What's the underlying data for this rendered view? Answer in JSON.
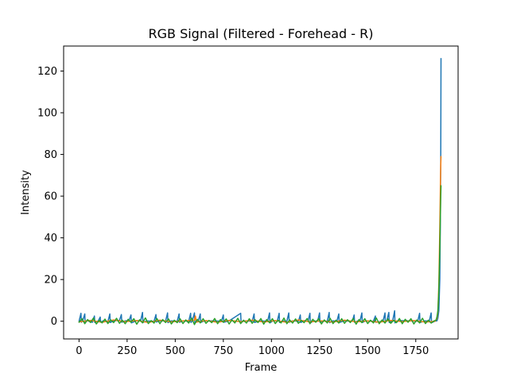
{
  "chart_data": {
    "type": "line",
    "title": "RGB Signal (Filtered - Forehead - R)",
    "xlabel": "Frame",
    "ylabel": "Intensity",
    "xlim": [
      -80,
      1970
    ],
    "ylim": [
      -8.5,
      132
    ],
    "xticks": [
      0,
      250,
      500,
      750,
      1000,
      1250,
      1500,
      1750
    ],
    "yticks": [
      0,
      20,
      40,
      60,
      80,
      100,
      120
    ],
    "grid": false,
    "legend": "none",
    "series": [
      {
        "color": "#1f77b4",
        "x": [
          0,
          10,
          12,
          20,
          30,
          32,
          40,
          70,
          80,
          82,
          100,
          110,
          112,
          130,
          150,
          160,
          162,
          180,
          210,
          220,
          222,
          240,
          260,
          270,
          272,
          300,
          320,
          330,
          332,
          350,
          390,
          400,
          402,
          420,
          450,
          460,
          462,
          480,
          510,
          520,
          522,
          540,
          570,
          580,
          582,
          590,
          600,
          602,
          620,
          630,
          632,
          650,
          700,
          740,
          750,
          752,
          780,
          840,
          842,
          860,
          900,
          910,
          912,
          940,
          980,
          990,
          992,
          1010,
          1030,
          1040,
          1042,
          1060,
          1080,
          1090,
          1092,
          1110,
          1140,
          1150,
          1152,
          1170,
          1190,
          1200,
          1202,
          1220,
          1240,
          1250,
          1252,
          1270,
          1290,
          1300,
          1302,
          1320,
          1340,
          1350,
          1352,
          1380,
          1420,
          1430,
          1432,
          1450,
          1460,
          1470,
          1472,
          1490,
          1530,
          1540,
          1542,
          1580,
          1590,
          1592,
          1600,
          1610,
          1612,
          1630,
          1640,
          1642,
          1660,
          1720,
          1760,
          1770,
          1772,
          1800,
          1820,
          1830,
          1832,
          1850,
          1860,
          1865,
          1870,
          1875,
          1878,
          1880,
          1881
        ],
        "y": [
          0,
          3.8,
          -0.5,
          0.5,
          3.5,
          -0.8,
          0.3,
          -0.5,
          2.5,
          -0.6,
          0.2,
          2,
          -0.5,
          0.4,
          -0.3,
          3.5,
          -0.6,
          0.2,
          0.4,
          3.2,
          -0.5,
          0.2,
          0.3,
          3,
          -0.8,
          0.3,
          0.2,
          4.2,
          -0.6,
          0.1,
          0,
          3.2,
          -0.4,
          0.2,
          0.1,
          4,
          -0.7,
          0.2,
          0,
          3.5,
          -0.5,
          0.2,
          0,
          3.8,
          -0.6,
          0.5,
          4,
          -0.8,
          0.2,
          3.5,
          -0.6,
          0.1,
          0.2,
          0,
          3,
          -0.5,
          0.2,
          3.8,
          -0.5,
          0.2,
          0,
          3.5,
          -0.6,
          0.2,
          0,
          4,
          -0.8,
          0.3,
          0,
          3.8,
          -0.6,
          0.2,
          0,
          4,
          -0.5,
          0.2,
          0,
          3,
          -0.6,
          0.3,
          0,
          3.8,
          -0.8,
          0.2,
          0,
          4,
          -0.5,
          0.2,
          0,
          4.2,
          -0.7,
          0.2,
          0,
          3.5,
          -0.6,
          0.2,
          0,
          3,
          -0.5,
          0.2,
          0,
          4,
          -0.6,
          0.2,
          0,
          2.5,
          -0.5,
          0,
          4,
          -0.5,
          0.5,
          4.2,
          -0.6,
          0.2,
          5,
          -0.8,
          0.3,
          0.2,
          0,
          3.8,
          -0.6,
          0.2,
          0,
          4,
          -0.7,
          0,
          0.2,
          1.5,
          5,
          20,
          50,
          80,
          126
        ]
      },
      {
        "color": "#ff7f0e",
        "x": [
          0,
          60,
          120,
          180,
          240,
          300,
          360,
          420,
          480,
          540,
          600,
          605,
          610,
          660,
          720,
          780,
          840,
          900,
          960,
          1020,
          1080,
          1140,
          1200,
          1260,
          1320,
          1380,
          1440,
          1500,
          1560,
          1620,
          1680,
          1740,
          1800,
          1850,
          1860,
          1865,
          1870,
          1875,
          1878,
          1880,
          1881
        ],
        "y": [
          -0.3,
          0.4,
          -0.5,
          0.6,
          -0.2,
          0.3,
          -0.6,
          0.5,
          -0.3,
          0.2,
          0.5,
          2.5,
          -0.4,
          0.3,
          -0.5,
          0.4,
          -0.2,
          0.5,
          -0.4,
          0.3,
          -0.5,
          0.6,
          -0.3,
          0.2,
          -0.4,
          0.5,
          -0.3,
          0.2,
          -0.5,
          0.4,
          -0.2,
          0.3,
          -0.4,
          0,
          1.2,
          4.5,
          18,
          45,
          65,
          75,
          79
        ]
      },
      {
        "color": "#2ca02c",
        "x": [
          0,
          15,
          30,
          45,
          60,
          75,
          90,
          105,
          120,
          135,
          150,
          165,
          180,
          195,
          210,
          225,
          240,
          255,
          270,
          285,
          300,
          315,
          330,
          345,
          360,
          375,
          390,
          405,
          420,
          435,
          450,
          465,
          480,
          495,
          510,
          525,
          540,
          555,
          570,
          585,
          600,
          615,
          630,
          645,
          660,
          675,
          690,
          705,
          720,
          735,
          750,
          765,
          780,
          795,
          810,
          825,
          840,
          855,
          870,
          885,
          900,
          915,
          930,
          945,
          960,
          975,
          990,
          1005,
          1020,
          1035,
          1050,
          1065,
          1080,
          1095,
          1110,
          1125,
          1140,
          1155,
          1170,
          1185,
          1200,
          1215,
          1230,
          1245,
          1260,
          1275,
          1290,
          1305,
          1320,
          1335,
          1350,
          1365,
          1380,
          1395,
          1410,
          1425,
          1440,
          1455,
          1470,
          1485,
          1500,
          1515,
          1530,
          1545,
          1560,
          1575,
          1590,
          1605,
          1620,
          1635,
          1650,
          1665,
          1680,
          1695,
          1710,
          1725,
          1740,
          1755,
          1770,
          1785,
          1800,
          1815,
          1830,
          1845,
          1855,
          1860,
          1865,
          1870,
          1875,
          1878,
          1880,
          1881
        ],
        "y": [
          -0.5,
          1.2,
          -1.2,
          0.8,
          -0.6,
          1.5,
          -1.3,
          0.4,
          -0.8,
          1,
          -1.1,
          0.6,
          -0.7,
          1.4,
          -1,
          0.5,
          -1.2,
          0.9,
          -0.5,
          1.2,
          -1.4,
          0.7,
          -0.8,
          1.6,
          -1.1,
          0.3,
          -0.9,
          1.3,
          -1.2,
          0.8,
          -0.6,
          1.1,
          -1.3,
          0.5,
          -0.7,
          1.2,
          -1.1,
          0.6,
          -0.9,
          1.5,
          -1.6,
          0.9,
          -0.8,
          1.2,
          -1,
          0.4,
          -0.7,
          1.3,
          -1.2,
          0.8,
          -0.5,
          1.1,
          -1.3,
          0.6,
          -0.8,
          1.4,
          -1.1,
          0.5,
          -0.9,
          1.2,
          -1,
          0.7,
          -0.6,
          1.3,
          -1.4,
          0.8,
          -0.7,
          1.2,
          -1.1,
          0.5,
          -0.8,
          1.5,
          -1.2,
          0.6,
          -0.9,
          1.1,
          -1,
          0.4,
          -0.7,
          1.3,
          -1.2,
          0.9,
          -0.5,
          1.2,
          -1.3,
          0.6,
          -0.8,
          1.4,
          -1.1,
          0.5,
          -0.9,
          1.2,
          -1,
          0.7,
          -0.6,
          1.3,
          -1.4,
          0.8,
          -0.7,
          1.2,
          -1.1,
          0.5,
          -0.8,
          1.5,
          -1.2,
          0.6,
          -0.9,
          1.1,
          -1,
          0.4,
          -0.7,
          1.3,
          -1.2,
          0.9,
          -0.5,
          1.2,
          -1.3,
          0.6,
          -0.8,
          1.4,
          -1.1,
          0.5,
          -0.9,
          0.2,
          0.5,
          2,
          5,
          15,
          35,
          50,
          60,
          65
        ]
      }
    ]
  }
}
